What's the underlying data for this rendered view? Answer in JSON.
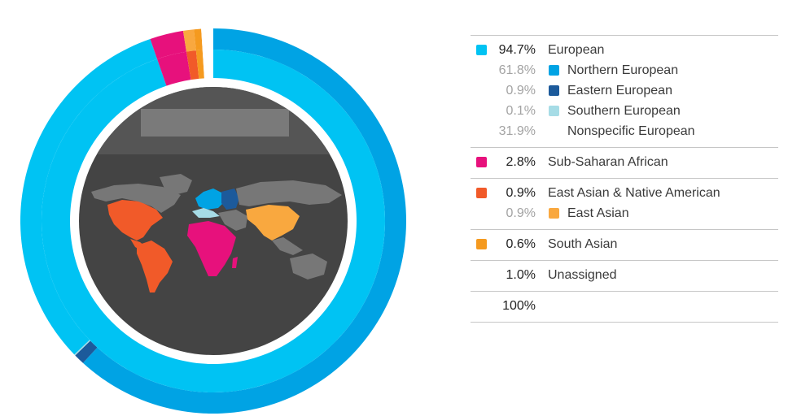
{
  "chart_data": {
    "type": "sunburst-donut",
    "outer_ring": [
      {
        "name": "Northern European",
        "value": 61.8,
        "color": "#00a3e4"
      },
      {
        "name": "Eastern European",
        "value": 0.9,
        "color": "#1c5a9b"
      },
      {
        "name": "Southern European",
        "value": 0.1,
        "color": "#a6dce6"
      },
      {
        "name": "Nonspecific European",
        "value": 31.9,
        "color": "#00c3f3"
      },
      {
        "name": "Sub-Saharan African",
        "value": 2.8,
        "color": "#e7117c"
      },
      {
        "name": "East Asian",
        "value": 0.9,
        "color": "#f9a83f"
      },
      {
        "name": "South Asian",
        "value": 0.6,
        "color": "#f59a1f"
      },
      {
        "name": "Unassigned",
        "value": 1.0,
        "color": "#ffffff"
      }
    ],
    "inner_ring": [
      {
        "name": "European",
        "value": 94.7,
        "color": "#00c3f3"
      },
      {
        "name": "Sub-Saharan African",
        "value": 2.8,
        "color": "#e7117c"
      },
      {
        "name": "East Asian & Native American",
        "value": 0.9,
        "color": "#f15a29"
      },
      {
        "name": "South Asian",
        "value": 0.6,
        "color": "#f59a1f"
      },
      {
        "name": "Unassigned",
        "value": 1.0,
        "color": "#ffffff"
      }
    ],
    "map_colors": {
      "land": "#777777",
      "background": "#444444",
      "top_band": "#555555",
      "northern_european": "#00a3e4",
      "eastern_european": "#1c5a9b",
      "southern_european": "#a6dce6",
      "sub_saharan_african": "#e7117c",
      "americas": "#f15a29",
      "east_asian": "#f9a83f"
    }
  },
  "legend": {
    "groups": [
      {
        "rows": [
          {
            "kind": "main",
            "pct": "94.7%",
            "label": "European",
            "color": "#00c3f3"
          },
          {
            "kind": "sub",
            "pct": "61.8%",
            "label": "Northern European",
            "color": "#00a3e4"
          },
          {
            "kind": "sub",
            "pct": "0.9%",
            "label": "Eastern European",
            "color": "#1c5a9b"
          },
          {
            "kind": "sub",
            "pct": "0.1%",
            "label": "Southern European",
            "color": "#a6dce6"
          },
          {
            "kind": "sub",
            "pct": "31.9%",
            "label": "Nonspecific European",
            "color": ""
          }
        ]
      },
      {
        "rows": [
          {
            "kind": "main",
            "pct": "2.8%",
            "label": "Sub-Saharan African",
            "color": "#e7117c"
          }
        ]
      },
      {
        "rows": [
          {
            "kind": "main",
            "pct": "0.9%",
            "label": "East Asian & Native American",
            "color": "#f15a29"
          },
          {
            "kind": "sub",
            "pct": "0.9%",
            "label": "East Asian",
            "color": "#f9a83f"
          }
        ]
      },
      {
        "rows": [
          {
            "kind": "main",
            "pct": "0.6%",
            "label": "South Asian",
            "color": "#f59a1f"
          }
        ]
      },
      {
        "rows": [
          {
            "kind": "main",
            "pct": "1.0%",
            "label": "Unassigned",
            "color": ""
          }
        ]
      }
    ],
    "total": "100%"
  }
}
